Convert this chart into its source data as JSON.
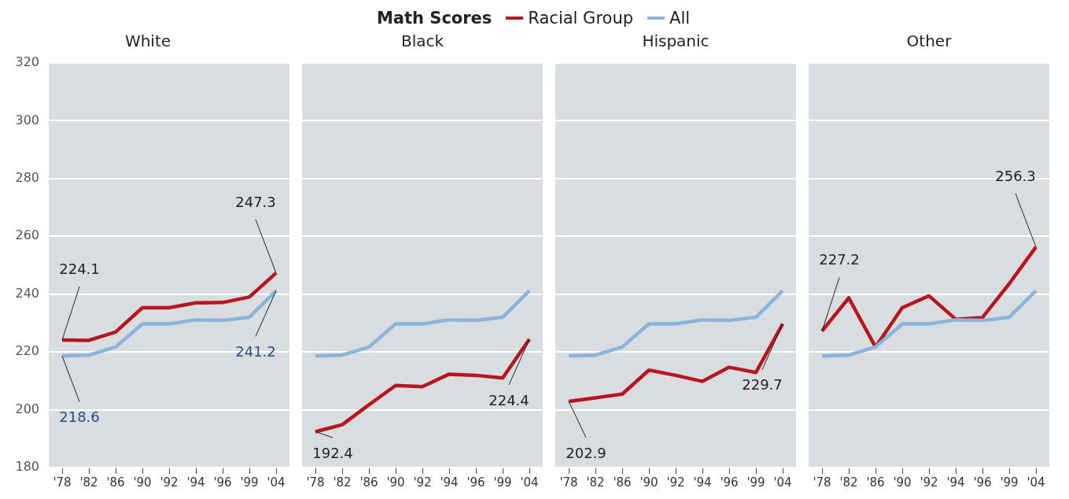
{
  "chart_data": [
    {
      "type": "line",
      "title": "White",
      "legend_title": "Math Scores",
      "legend": "top",
      "grid": "y",
      "ylim": [
        180,
        320
      ],
      "yticks": [
        180,
        200,
        220,
        240,
        260,
        280,
        300,
        320
      ],
      "categories": [
        "'78",
        "'82",
        "'86",
        "'90",
        "'92",
        "'94",
        "'96",
        "'99",
        "'04"
      ],
      "series": [
        {
          "name": "Racial Group",
          "color": "#b5161f",
          "values": [
            224.1,
            224.0,
            226.9,
            235.3,
            235.3,
            237.0,
            237.1,
            239.0,
            247.3
          ],
          "value_labels": [
            "224.1",
            null,
            null,
            null,
            null,
            null,
            null,
            null,
            "247.3"
          ]
        },
        {
          "name": "All",
          "color": "#8ab4dc",
          "values": [
            218.6,
            218.9,
            221.7,
            229.7,
            229.7,
            231.1,
            230.9,
            232.0,
            241.2
          ],
          "value_labels": [
            "218.6",
            null,
            null,
            null,
            null,
            null,
            null,
            null,
            "241.2"
          ]
        }
      ]
    },
    {
      "type": "line",
      "title": "Black",
      "grid": "y",
      "tick_labels": "x",
      "ylim": [
        180,
        320
      ],
      "yticks": [
        180,
        200,
        220,
        240,
        260,
        280,
        300,
        320
      ],
      "categories": [
        "'78",
        "'82",
        "'86",
        "'90",
        "'92",
        "'94",
        "'96",
        "'99",
        "'04"
      ],
      "series": [
        {
          "color": "#b5161f",
          "values": [
            192.4,
            194.8,
            201.7,
            208.4,
            208.0,
            212.3,
            211.9,
            211.0,
            224.4
          ],
          "value_labels": [
            "192.4",
            null,
            null,
            null,
            null,
            null,
            null,
            null,
            "224.4"
          ]
        },
        {
          "color": "#8ab4dc",
          "values": [
            218.6,
            218.9,
            221.7,
            229.7,
            229.7,
            231.1,
            230.9,
            232.0,
            241.2
          ]
        }
      ]
    },
    {
      "type": "line",
      "title": "Hispanic",
      "grid": "y",
      "tick_labels": "x",
      "ylim": [
        180,
        320
      ],
      "yticks": [
        180,
        200,
        220,
        240,
        260,
        280,
        300,
        320
      ],
      "categories": [
        "'78",
        "'82",
        "'86",
        "'90",
        "'92",
        "'94",
        "'96",
        "'99",
        "'04"
      ],
      "series": [
        {
          "color": "#b5161f",
          "values": [
            202.9,
            204.1,
            205.4,
            213.7,
            211.9,
            209.8,
            214.7,
            212.9,
            229.7
          ],
          "value_labels": [
            "202.9",
            null,
            null,
            null,
            null,
            null,
            null,
            null,
            "229.7"
          ]
        },
        {
          "color": "#8ab4dc",
          "values": [
            218.6,
            218.9,
            221.7,
            229.7,
            229.7,
            231.1,
            230.9,
            232.0,
            241.2
          ]
        }
      ]
    },
    {
      "type": "line",
      "title": "Other",
      "grid": "y",
      "tick_labels": "x",
      "ylim": [
        180,
        320
      ],
      "yticks": [
        180,
        200,
        220,
        240,
        260,
        280,
        300,
        320
      ],
      "categories": [
        "'78",
        "'82",
        "'86",
        "'90",
        "'92",
        "'94",
        "'96",
        "'99",
        "'04"
      ],
      "series": [
        {
          "color": "#b5161f",
          "values": [
            227.2,
            238.7,
            221.7,
            235.3,
            239.4,
            231.3,
            231.9,
            243.6,
            256.3
          ],
          "value_labels": [
            "227.2",
            null,
            null,
            null,
            null,
            null,
            null,
            null,
            "256.3"
          ]
        },
        {
          "color": "#8ab4dc",
          "values": [
            218.6,
            218.9,
            221.7,
            229.7,
            229.7,
            231.1,
            230.9,
            232.0,
            241.2
          ]
        }
      ]
    }
  ]
}
